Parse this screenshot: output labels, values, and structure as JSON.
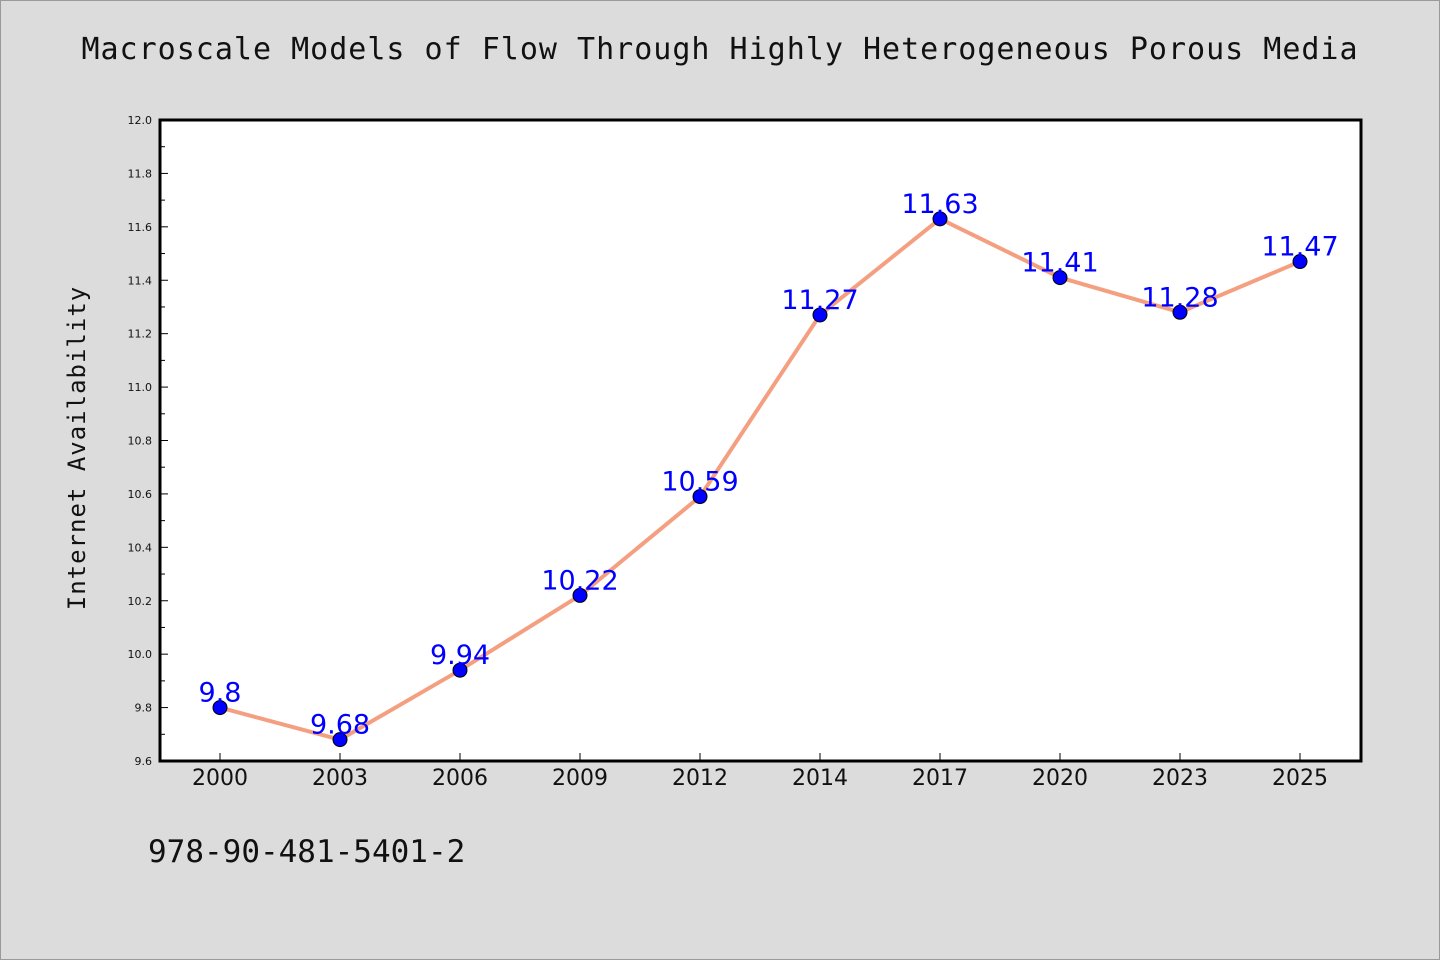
{
  "title": "Macroscale Models of Flow Through Highly Heterogeneous Porous Media",
  "isbn": "978-90-481-5401-2",
  "chart_data": {
    "type": "line",
    "title": "Macroscale Models of Flow Through Highly Heterogeneous Porous Media",
    "xlabel": "",
    "ylabel": "Internet Availability",
    "categories": [
      "2000",
      "2003",
      "2006",
      "2009",
      "2012",
      "2014",
      "2017",
      "2020",
      "2023",
      "2025"
    ],
    "series": [
      {
        "values": [
          9.8,
          9.68,
          9.94,
          10.22,
          10.59,
          11.27,
          11.63,
          11.41,
          11.28,
          11.47
        ],
        "labels": [
          "9.8",
          "9.68",
          "9.94",
          "10.22",
          "10.59",
          "11.27",
          "11.63",
          "11.41",
          "11.28",
          "11.47"
        ],
        "line_color": "#f4a080",
        "marker_color": "#0000ff"
      }
    ],
    "ylim": [
      9.6,
      12.0
    ],
    "yticks": [
      "9.6",
      "9.8",
      "10.0",
      "10.2",
      "10.4",
      "10.6",
      "10.8",
      "11.0",
      "11.2",
      "11.4",
      "11.6",
      "11.8",
      "12.0"
    ],
    "grid": false,
    "legend": "none",
    "data_labels": true
  }
}
